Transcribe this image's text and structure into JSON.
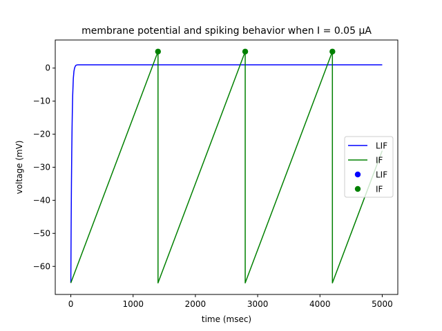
{
  "chart_data": {
    "type": "line",
    "title": "membrane potential and spiking behavior when I = 0.05 µA",
    "xlabel": "time (msec)",
    "ylabel": "voltage (mV)",
    "xlim": [
      -250,
      5250
    ],
    "ylim": [
      -68.5,
      8.5
    ],
    "xticks": [
      0,
      1000,
      2000,
      3000,
      4000,
      5000
    ],
    "yticks": [
      0,
      -10,
      -20,
      -30,
      -40,
      -50,
      -60
    ],
    "xtick_labels": [
      "0",
      "1000",
      "2000",
      "3000",
      "4000",
      "5000"
    ],
    "ytick_labels": [
      "0",
      "−10",
      "−20",
      "−30",
      "−40",
      "−50",
      "−60"
    ],
    "grid": false,
    "legend_position": "center right",
    "series": [
      {
        "name": "LIF",
        "kind": "line",
        "color": "#0000ff",
        "x": [
          0,
          5,
          10,
          15,
          20,
          25,
          30,
          40,
          50,
          60,
          70,
          80,
          90,
          100,
          120,
          140,
          160,
          200,
          300,
          5000
        ],
        "y": [
          -65,
          -48,
          -35,
          -25.5,
          -18,
          -12.5,
          -8.3,
          -3.2,
          -1.0,
          0.0,
          0.5,
          0.8,
          0.9,
          0.95,
          1.0,
          1.0,
          1.0,
          1.0,
          1.0,
          1.0
        ]
      },
      {
        "name": "IF",
        "kind": "line",
        "color": "#008000",
        "x": [
          0,
          1400,
          1400,
          2800,
          2800,
          4200,
          4200,
          5000
        ],
        "y": [
          -65,
          5,
          -65,
          5,
          -65,
          5,
          -65,
          -25
        ]
      },
      {
        "name": "LIF",
        "kind": "scatter",
        "color": "#0000ff",
        "x": [],
        "y": []
      },
      {
        "name": "IF",
        "kind": "scatter",
        "color": "#008000",
        "x": [
          1400,
          2800,
          4200
        ],
        "y": [
          5,
          5,
          5
        ]
      }
    ]
  }
}
